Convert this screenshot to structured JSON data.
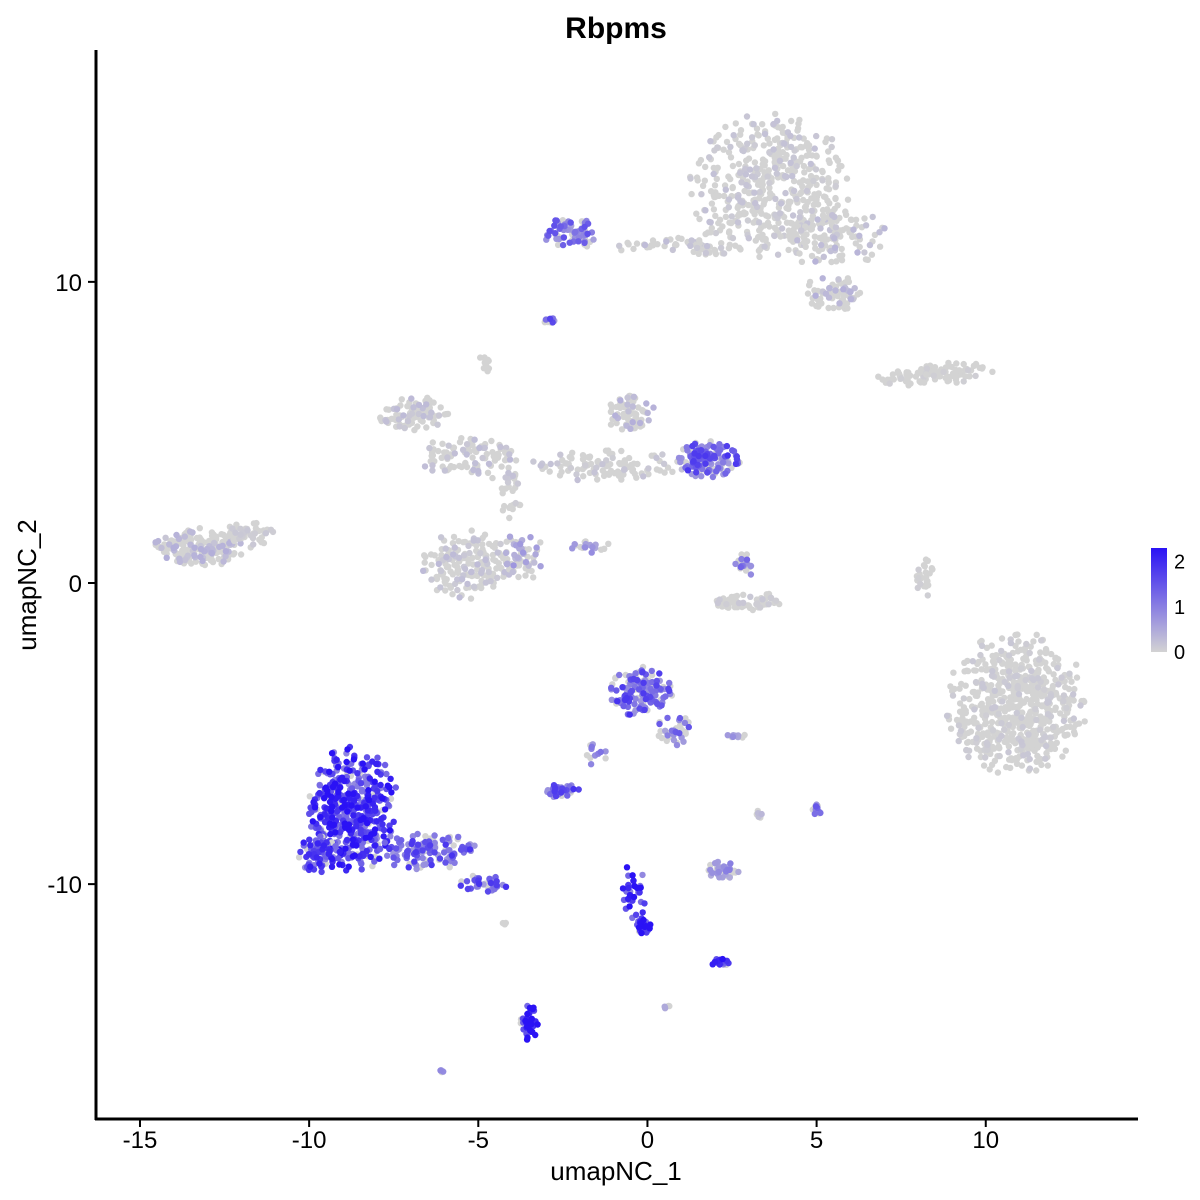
{
  "chart_data": {
    "type": "scatter",
    "title": "Rbpms",
    "xlabel": "umapNC_1",
    "ylabel": "umapNC_2",
    "xlim": [
      -16.3,
      14.5
    ],
    "ylim": [
      -17.8,
      17.7
    ],
    "x_ticks": [
      -15,
      -10,
      -5,
      0,
      5,
      10
    ],
    "x_tick_labels": [
      "-15",
      "-10",
      "-5",
      "0",
      "5",
      "10"
    ],
    "y_ticks": [
      -10,
      0,
      10
    ],
    "y_tick_labels": [
      "-10",
      "0",
      "10"
    ],
    "grid": false,
    "legend": {
      "position": "right",
      "type": "colorbar",
      "ticks": [
        0,
        1,
        2
      ],
      "tick_labels": [
        "0",
        "1",
        "2"
      ],
      "range": [
        0,
        2.3
      ],
      "low_color": "#d3d3d3",
      "high_color": "#2a12f5"
    },
    "clusters": [
      {
        "cx": 3.6,
        "cy": 13.2,
        "rx": 2.3,
        "ry": 2.3,
        "n": 480,
        "expr": 0.15
      },
      {
        "cx": 5.5,
        "cy": 11.5,
        "rx": 1.5,
        "ry": 1.0,
        "n": 120,
        "expr": 0.25
      },
      {
        "cx": 5.5,
        "cy": 9.6,
        "rx": 0.9,
        "ry": 0.6,
        "n": 70,
        "expr": 0.3
      },
      {
        "cx": -2.3,
        "cy": 11.6,
        "rx": 0.9,
        "ry": 0.5,
        "n": 70,
        "expr": 1.1
      },
      {
        "cx": 0.5,
        "cy": 11.2,
        "rx": 1.4,
        "ry": 0.3,
        "n": 30,
        "expr": 0.2
      },
      {
        "cx": 2.0,
        "cy": 11.3,
        "rx": 0.8,
        "ry": 0.5,
        "n": 30,
        "expr": 0.15
      },
      {
        "cx": 9.0,
        "cy": 7.0,
        "rx": 1.2,
        "ry": 0.35,
        "n": 60,
        "expr": 0.05
      },
      {
        "cx": 7.5,
        "cy": 6.8,
        "rx": 0.8,
        "ry": 0.3,
        "n": 30,
        "expr": 0.05
      },
      {
        "cx": -2.9,
        "cy": 8.7,
        "rx": 0.2,
        "ry": 0.1,
        "n": 12,
        "expr": 1.2
      },
      {
        "cx": -4.8,
        "cy": 7.3,
        "rx": 0.2,
        "ry": 0.3,
        "n": 10,
        "expr": 0.1
      },
      {
        "cx": -6.9,
        "cy": 5.6,
        "rx": 1.0,
        "ry": 0.6,
        "n": 90,
        "expr": 0.2
      },
      {
        "cx": -5.3,
        "cy": 4.2,
        "rx": 1.5,
        "ry": 0.6,
        "n": 90,
        "expr": 0.2
      },
      {
        "cx": -4.1,
        "cy": 3.2,
        "rx": 0.5,
        "ry": 1.2,
        "n": 35,
        "expr": 0.15
      },
      {
        "cx": -5.3,
        "cy": 0.6,
        "rx": 1.3,
        "ry": 1.1,
        "n": 180,
        "expr": 0.2
      },
      {
        "cx": -3.7,
        "cy": 0.9,
        "rx": 0.6,
        "ry": 0.8,
        "n": 60,
        "expr": 0.5
      },
      {
        "cx": -1.2,
        "cy": 3.9,
        "rx": 2.4,
        "ry": 0.5,
        "n": 110,
        "expr": 0.15
      },
      {
        "cx": -0.5,
        "cy": 5.6,
        "rx": 0.7,
        "ry": 0.6,
        "n": 70,
        "expr": 0.3
      },
      {
        "cx": 1.8,
        "cy": 4.1,
        "rx": 0.9,
        "ry": 0.6,
        "n": 150,
        "expr": 1.3
      },
      {
        "cx": -1.7,
        "cy": 1.2,
        "rx": 0.6,
        "ry": 0.2,
        "n": 18,
        "expr": 0.9
      },
      {
        "cx": -13.2,
        "cy": 1.2,
        "rx": 1.4,
        "ry": 0.6,
        "n": 200,
        "expr": 0.3
      },
      {
        "cx": -11.8,
        "cy": 1.6,
        "rx": 0.8,
        "ry": 0.4,
        "n": 50,
        "expr": 0.1
      },
      {
        "cx": 2.9,
        "cy": 0.6,
        "rx": 0.3,
        "ry": 0.5,
        "n": 25,
        "expr": 0.9
      },
      {
        "cx": 3.0,
        "cy": -0.6,
        "rx": 1.0,
        "ry": 0.3,
        "n": 60,
        "expr": 0.1
      },
      {
        "cx": 8.2,
        "cy": 0.2,
        "rx": 0.3,
        "ry": 0.7,
        "n": 25,
        "expr": 0.05
      },
      {
        "cx": 10.9,
        "cy": -4.0,
        "rx": 2.0,
        "ry": 2.3,
        "n": 620,
        "expr": 0.1
      },
      {
        "cx": -0.2,
        "cy": -3.6,
        "rx": 0.9,
        "ry": 0.8,
        "n": 160,
        "expr": 1.3
      },
      {
        "cx": 0.8,
        "cy": -4.9,
        "rx": 0.5,
        "ry": 0.5,
        "n": 35,
        "expr": 1.1
      },
      {
        "cx": -2.5,
        "cy": -6.9,
        "rx": 0.5,
        "ry": 0.25,
        "n": 40,
        "expr": 1.3
      },
      {
        "cx": -1.6,
        "cy": -5.7,
        "rx": 0.4,
        "ry": 0.5,
        "n": 12,
        "expr": 1.0
      },
      {
        "cx": 2.6,
        "cy": -5.1,
        "rx": 0.3,
        "ry": 0.1,
        "n": 10,
        "expr": 0.9
      },
      {
        "cx": -8.7,
        "cy": -7.5,
        "rx": 1.3,
        "ry": 2.0,
        "n": 480,
        "expr": 1.7
      },
      {
        "cx": -9.7,
        "cy": -9.0,
        "rx": 0.6,
        "ry": 0.6,
        "n": 80,
        "expr": 1.5
      },
      {
        "cx": -6.5,
        "cy": -8.9,
        "rx": 1.4,
        "ry": 0.6,
        "n": 120,
        "expr": 1.3
      },
      {
        "cx": -4.8,
        "cy": -10.0,
        "rx": 0.7,
        "ry": 0.3,
        "n": 40,
        "expr": 1.3
      },
      {
        "cx": 2.2,
        "cy": -9.5,
        "rx": 0.5,
        "ry": 0.3,
        "n": 40,
        "expr": 0.7
      },
      {
        "cx": 5.0,
        "cy": -7.5,
        "rx": 0.15,
        "ry": 0.3,
        "n": 15,
        "expr": 1.0
      },
      {
        "cx": 3.3,
        "cy": -7.7,
        "rx": 0.1,
        "ry": 0.3,
        "n": 8,
        "expr": 0.3
      },
      {
        "cx": -0.4,
        "cy": -10.2,
        "rx": 0.4,
        "ry": 1.0,
        "n": 30,
        "expr": 1.7
      },
      {
        "cx": -0.1,
        "cy": -11.4,
        "rx": 0.2,
        "ry": 0.3,
        "n": 25,
        "expr": 2.2
      },
      {
        "cx": 2.2,
        "cy": -12.6,
        "rx": 0.3,
        "ry": 0.15,
        "n": 20,
        "expr": 1.6
      },
      {
        "cx": -3.5,
        "cy": -14.6,
        "rx": 0.25,
        "ry": 0.6,
        "n": 40,
        "expr": 2.0
      },
      {
        "cx": 0.6,
        "cy": -14.1,
        "rx": 0.1,
        "ry": 0.1,
        "n": 4,
        "expr": 0.5
      },
      {
        "cx": -6.1,
        "cy": -16.2,
        "rx": 0.1,
        "ry": 0.1,
        "n": 4,
        "expr": 1.0
      },
      {
        "cx": -4.2,
        "cy": -11.3,
        "rx": 0.3,
        "ry": 0.1,
        "n": 3,
        "expr": 0.1
      }
    ]
  }
}
